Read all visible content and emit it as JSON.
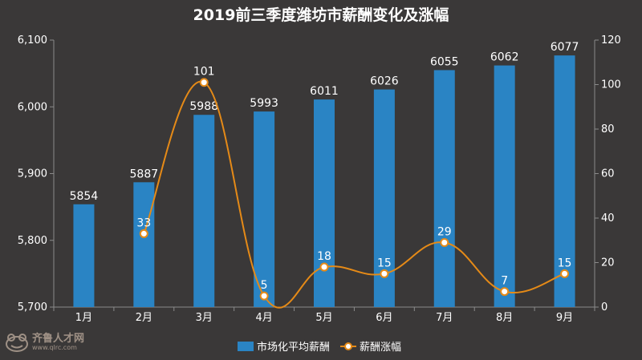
{
  "chart_data": {
    "type": "bar+line",
    "title": "2019前三季度潍坊市薪酬变化及涨幅",
    "categories": [
      "1月",
      "2月",
      "3月",
      "4月",
      "5月",
      "6月",
      "7月",
      "8月",
      "9月"
    ],
    "series": [
      {
        "name": "市场化平均薪酬",
        "type": "bar",
        "axis": "left",
        "values": [
          5854,
          5887,
          5988,
          5993,
          6011,
          6026,
          6055,
          6062,
          6077
        ]
      },
      {
        "name": "薪酬涨幅",
        "type": "line",
        "axis": "right",
        "smooth": true,
        "values": [
          null,
          33,
          101,
          5,
          18,
          15,
          29,
          7,
          15
        ]
      }
    ],
    "y_left": {
      "min": 5700,
      "max": 6100,
      "ticks": [
        "5,700",
        "5,800",
        "5,900",
        "6,000",
        "6,100"
      ]
    },
    "y_right": {
      "min": 0,
      "max": 120,
      "ticks": [
        "0",
        "20",
        "40",
        "60",
        "80",
        "100",
        "120"
      ]
    },
    "grid": false,
    "legend_position": "bottom-center",
    "colors": {
      "background": "#3a3838",
      "bar": "#2a84c4",
      "line": "#e58a17",
      "marker_fill": "#ffffff",
      "text": "#ffffff",
      "axis": "#8a8a8a"
    }
  },
  "watermark": {
    "brand": "齐鲁人才网",
    "url": "www.qlrc.com"
  }
}
